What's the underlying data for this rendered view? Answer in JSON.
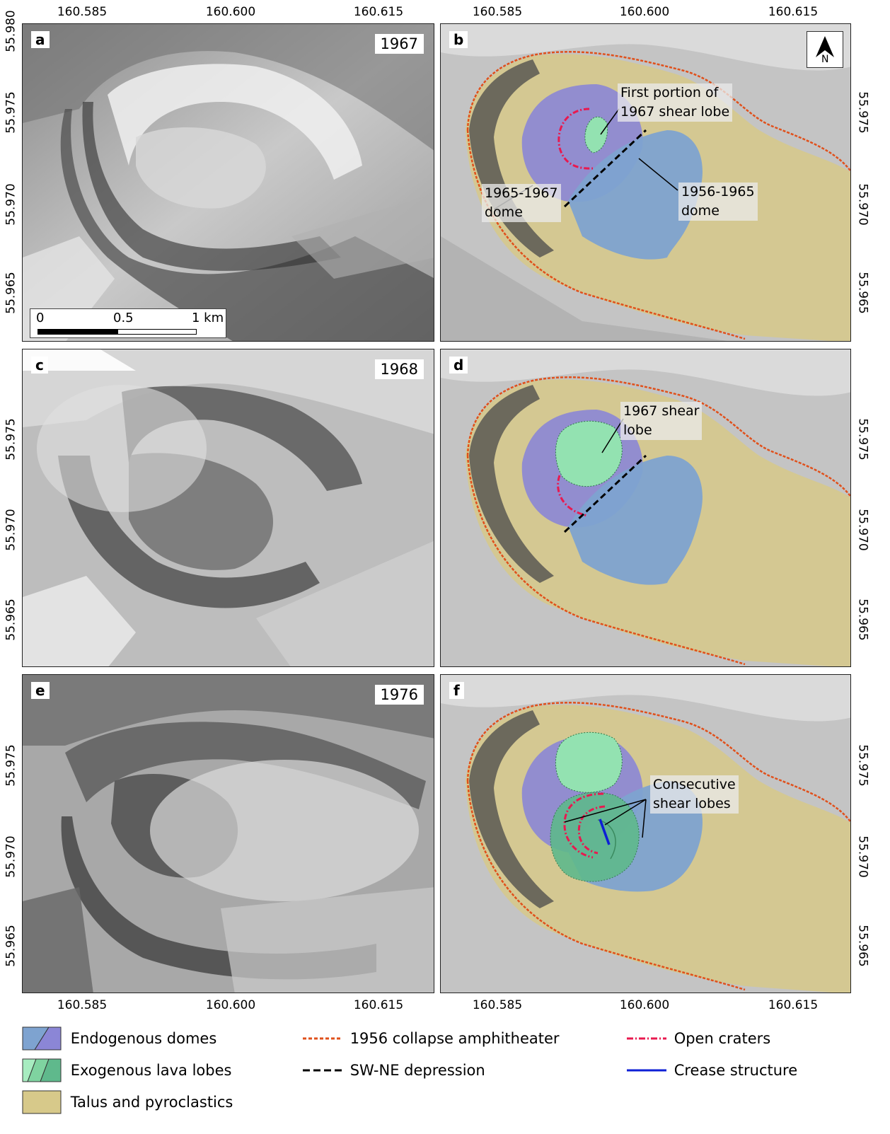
{
  "axes": {
    "top_ticks": [
      "160.585",
      "160.600",
      "160.615"
    ],
    "bottom_ticks": [
      "160.585",
      "160.600",
      "160.615"
    ],
    "lat_ticks": [
      "55.980",
      "55.975",
      "55.970",
      "55.965"
    ]
  },
  "panels": {
    "a": {
      "letter": "a",
      "year": "1967",
      "kind": "photo"
    },
    "b": {
      "letter": "b",
      "kind": "map",
      "annotations": [
        "First portion of",
        "1967 shear lobe",
        "1965-1967",
        "dome",
        "1956-1965",
        "dome"
      ]
    },
    "c": {
      "letter": "c",
      "year": "1968",
      "kind": "photo"
    },
    "d": {
      "letter": "d",
      "kind": "map",
      "annotations": [
        "1967 shear",
        "lobe"
      ]
    },
    "e": {
      "letter": "e",
      "year": "1976",
      "kind": "photo"
    },
    "f": {
      "letter": "f",
      "kind": "map",
      "annotations": [
        "Consecutive",
        "shear lobes"
      ]
    }
  },
  "scale_bar": {
    "labels": [
      "0",
      "0.5",
      "1 km"
    ]
  },
  "north_arrow": {
    "label": "N"
  },
  "legend": {
    "items": [
      {
        "label": "Endogenous domes",
        "symbol": "blue-purple-patch",
        "colors": [
          "#7ea3d0",
          "#8b86d6"
        ]
      },
      {
        "label": "Exogenous lava lobes",
        "symbol": "green-patch",
        "colors": [
          "#93e2b1",
          "#5fb98c"
        ]
      },
      {
        "label": "Talus and pyroclastics",
        "symbol": "tan-patch",
        "colors": [
          "#d7c98a"
        ]
      },
      {
        "label": "1956 collapse amphitheater",
        "symbol": "orange-dotted-line",
        "colors": [
          "#e0501b"
        ]
      },
      {
        "label": "SW-NE depression",
        "symbol": "black-dashed-line",
        "colors": [
          "#000000"
        ]
      },
      {
        "label": "Open craters",
        "symbol": "red-dashdot-line",
        "colors": [
          "#e8194f"
        ]
      },
      {
        "label": "Crease structure",
        "symbol": "blue-solid-line",
        "colors": [
          "#0d1fd6"
        ]
      }
    ]
  }
}
